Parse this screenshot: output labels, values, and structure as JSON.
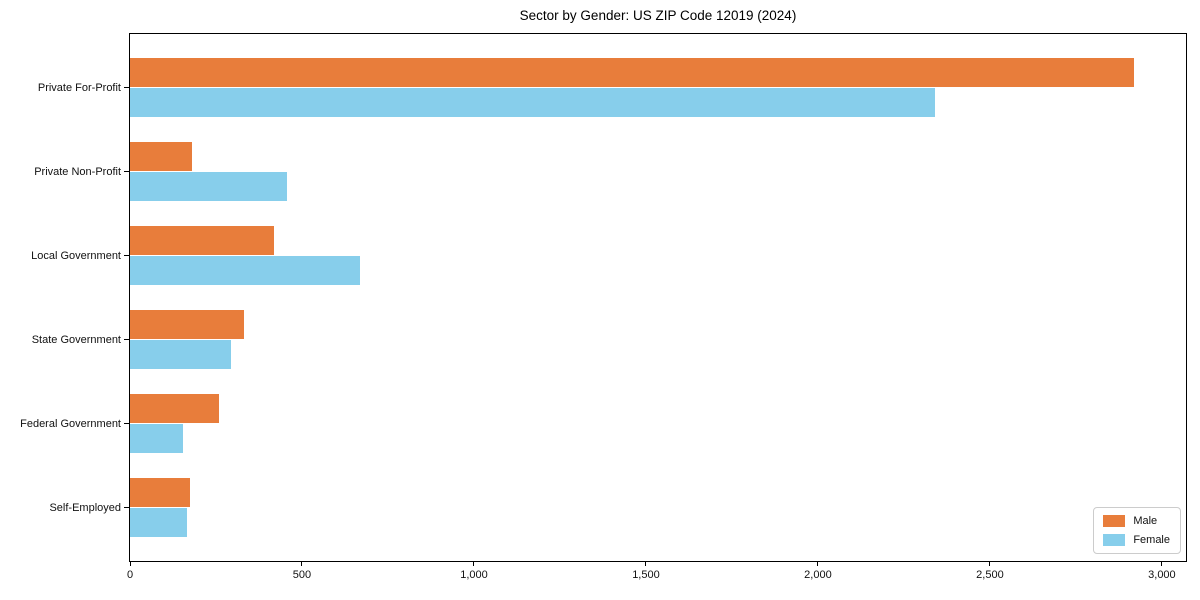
{
  "chart_data": {
    "type": "bar",
    "orientation": "horizontal",
    "title": "Sector by Gender: US ZIP Code 12019 (2024)",
    "categories": [
      "Private For-Profit",
      "Private Non-Profit",
      "Local Government",
      "State Government",
      "Federal Government",
      "Self-Employed"
    ],
    "series": [
      {
        "name": "Male",
        "color": "#e87d3b",
        "values": [
          2920,
          180,
          420,
          330,
          260,
          175
        ]
      },
      {
        "name": "Female",
        "color": "#87ceeb",
        "values": [
          2340,
          455,
          670,
          295,
          155,
          165
        ]
      }
    ],
    "xlabel": "",
    "ylabel": "",
    "xlim": [
      0,
      3070
    ],
    "xticks": {
      "values": [
        0,
        500,
        1000,
        1500,
        2000,
        2500,
        3000
      ],
      "labels": [
        "0",
        "500",
        "1,000",
        "1,500",
        "2,000",
        "2,500",
        "3,000"
      ]
    },
    "grid": false,
    "legend": {
      "position": "lower right",
      "entries": [
        "Male",
        "Female"
      ]
    }
  }
}
